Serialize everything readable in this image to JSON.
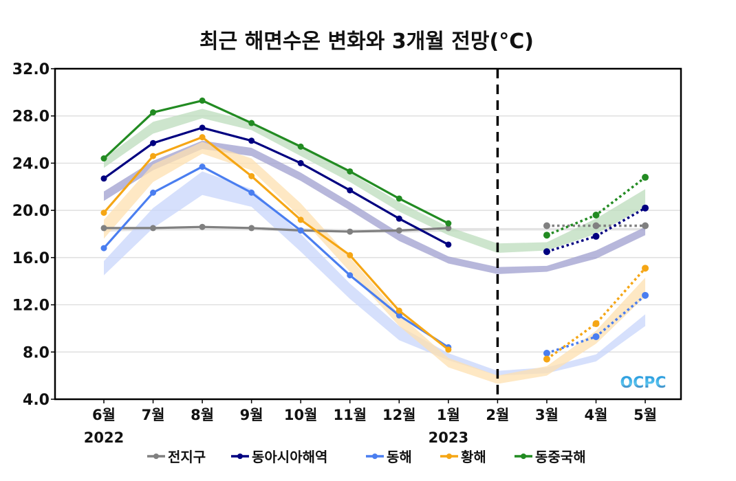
{
  "chart_data": {
    "type": "line",
    "title": "최근 해면수온 변화와 3개월 전망(°C)",
    "xlabel": "",
    "ylabel": "",
    "ylim": [
      4.0,
      32.0
    ],
    "yticks": [
      "32.0",
      "28.0",
      "24.0",
      "20.0",
      "16.0",
      "12.0",
      "8.0",
      "4.0"
    ],
    "ytick_values": [
      32,
      28,
      24,
      20,
      16,
      12,
      8,
      4
    ],
    "grid": true,
    "categories": [
      "6월",
      "7월",
      "8월",
      "9월",
      "10월",
      "11월",
      "12월",
      "1월",
      "2월",
      "3월",
      "4월",
      "5월"
    ],
    "year_labels": [
      {
        "index": 0,
        "label": "2022"
      },
      {
        "index": 7,
        "label": "2023"
      }
    ],
    "divider_index": 8,
    "legend_position": "bottom",
    "logo": "OCPC",
    "series": [
      {
        "name": "전지구",
        "color": "#808080",
        "band_color": "#d9d9d9",
        "observed": [
          18.5,
          18.5,
          18.6,
          18.5,
          18.3,
          18.2,
          18.3,
          18.5
        ],
        "forecast": [
          18.7,
          18.7,
          18.7
        ],
        "band_low": [
          18.2,
          18.3,
          18.3,
          18.3,
          18.2,
          18.1,
          18.1,
          18.2,
          18.3,
          18.3,
          18.3,
          18.3
        ],
        "band_high": [
          18.5,
          18.6,
          18.6,
          18.6,
          18.5,
          18.4,
          18.4,
          18.5,
          18.5,
          18.5,
          18.5,
          18.5
        ]
      },
      {
        "name": "동아시아해역",
        "color": "#000080",
        "band_color": "#9f9fcf",
        "observed": [
          22.7,
          25.7,
          27.0,
          25.9,
          24.0,
          21.7,
          19.3,
          17.1
        ],
        "forecast": [
          16.5,
          17.8,
          20.2
        ],
        "band_low": [
          20.8,
          23.4,
          25.2,
          24.6,
          22.5,
          20.0,
          17.4,
          15.5,
          14.6,
          14.8,
          15.9,
          17.9
        ],
        "band_high": [
          21.6,
          24.2,
          25.9,
          25.3,
          23.2,
          20.7,
          18.1,
          16.1,
          15.2,
          15.3,
          16.6,
          18.6
        ]
      },
      {
        "name": "동해",
        "color": "#4a7ef0",
        "band_color": "#c8d6fb",
        "observed": [
          16.8,
          21.5,
          23.7,
          21.5,
          18.3,
          14.5,
          11.1,
          8.4
        ],
        "forecast": [
          7.9,
          9.3,
          12.8
        ],
        "band_low": [
          14.5,
          18.5,
          21.3,
          20.3,
          16.5,
          12.5,
          9.0,
          7.3,
          6.0,
          6.2,
          7.2,
          10.2
        ],
        "band_high": [
          15.7,
          20.2,
          23.3,
          21.8,
          18.0,
          13.8,
          10.2,
          7.9,
          6.4,
          6.7,
          7.8,
          11.2
        ]
      },
      {
        "name": "황해",
        "color": "#f5a615",
        "band_color": "#fde0b0",
        "observed": [
          19.8,
          24.6,
          26.2,
          22.9,
          19.2,
          16.2,
          11.5,
          8.2
        ],
        "forecast": [
          7.4,
          10.4,
          15.1
        ],
        "band_low": [
          17.6,
          22.4,
          24.8,
          23.4,
          19.4,
          14.8,
          10.2,
          6.7,
          5.3,
          6.0,
          8.7,
          12.7
        ],
        "band_high": [
          19.2,
          23.9,
          25.8,
          24.4,
          20.6,
          16.0,
          11.2,
          7.5,
          6.0,
          6.8,
          9.8,
          14.3
        ]
      },
      {
        "name": "동중국해",
        "color": "#228b22",
        "band_color": "#bcdcbc",
        "observed": [
          24.4,
          28.3,
          29.3,
          27.4,
          25.4,
          23.3,
          21.0,
          18.9
        ],
        "forecast": [
          17.9,
          19.6,
          22.8
        ],
        "band_low": [
          23.6,
          26.5,
          27.8,
          26.8,
          24.6,
          22.4,
          19.9,
          17.9,
          16.4,
          16.6,
          18.0,
          20.3
        ],
        "band_high": [
          24.4,
          27.5,
          28.6,
          27.5,
          25.4,
          23.2,
          20.7,
          18.6,
          17.2,
          17.3,
          19.3,
          21.8
        ]
      }
    ]
  }
}
